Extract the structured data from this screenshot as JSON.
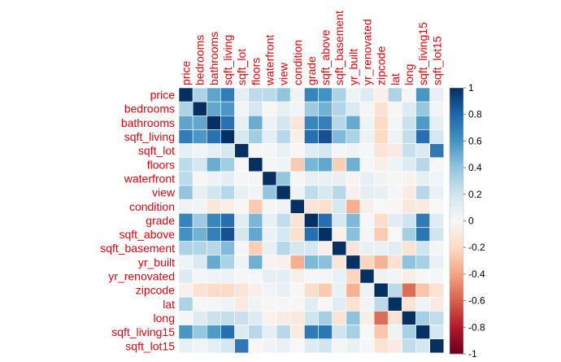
{
  "chart_data": {
    "type": "heatmap",
    "variables": [
      "price",
      "bedrooms",
      "bathrooms",
      "sqft_living",
      "sqft_lot",
      "floors",
      "waterfront",
      "view",
      "condition",
      "grade",
      "sqft_above",
      "sqft_basement",
      "yr_built",
      "yr_renovated",
      "zipcode",
      "lat",
      "long",
      "sqft_living15",
      "sqft_lot15"
    ],
    "matrix": [
      [
        1.0,
        0.31,
        0.53,
        0.7,
        0.09,
        0.26,
        0.27,
        0.4,
        0.04,
        0.67,
        0.61,
        0.32,
        0.05,
        0.13,
        -0.05,
        0.31,
        0.02,
        0.59,
        0.08
      ],
      [
        0.31,
        1.0,
        0.52,
        0.58,
        0.03,
        0.18,
        -0.01,
        0.08,
        0.03,
        0.36,
        0.48,
        0.3,
        0.15,
        0.02,
        -0.15,
        -0.01,
        0.13,
        0.39,
        0.03
      ],
      [
        0.53,
        0.52,
        1.0,
        0.75,
        0.09,
        0.5,
        0.06,
        0.19,
        -0.12,
        0.66,
        0.69,
        0.28,
        0.51,
        0.05,
        -0.2,
        0.02,
        0.22,
        0.57,
        0.09
      ],
      [
        0.7,
        0.58,
        0.75,
        1.0,
        0.17,
        0.35,
        0.1,
        0.28,
        -0.06,
        0.76,
        0.88,
        0.44,
        0.32,
        0.06,
        -0.2,
        0.05,
        0.24,
        0.76,
        0.18
      ],
      [
        0.09,
        0.03,
        0.09,
        0.17,
        1.0,
        -0.01,
        0.02,
        0.07,
        -0.01,
        0.11,
        0.18,
        0.02,
        0.05,
        0.01,
        -0.13,
        -0.09,
        0.23,
        0.14,
        0.72
      ],
      [
        0.26,
        0.18,
        0.5,
        0.35,
        -0.01,
        1.0,
        0.02,
        0.03,
        -0.26,
        0.46,
        0.52,
        -0.25,
        0.49,
        0.01,
        -0.06,
        0.05,
        0.13,
        0.28,
        -0.01
      ],
      [
        0.27,
        -0.01,
        0.06,
        0.1,
        0.02,
        0.02,
        1.0,
        0.4,
        0.02,
        0.08,
        0.07,
        0.08,
        -0.03,
        0.09,
        0.03,
        -0.01,
        -0.04,
        0.09,
        0.03
      ],
      [
        0.4,
        0.08,
        0.19,
        0.28,
        0.07,
        0.03,
        0.4,
        1.0,
        0.05,
        0.25,
        0.17,
        0.28,
        -0.05,
        0.1,
        0.08,
        0.01,
        -0.08,
        0.28,
        0.07
      ],
      [
        0.04,
        0.03,
        -0.12,
        -0.06,
        -0.01,
        -0.26,
        0.02,
        0.05,
        1.0,
        -0.14,
        -0.16,
        0.17,
        -0.36,
        -0.06,
        0.0,
        -0.01,
        -0.11,
        -0.09,
        -0.0
      ],
      [
        0.67,
        0.36,
        0.66,
        0.76,
        0.11,
        0.46,
        0.08,
        0.25,
        -0.14,
        1.0,
        0.76,
        0.17,
        0.45,
        0.01,
        -0.18,
        0.11,
        0.2,
        0.71,
        0.12
      ],
      [
        0.61,
        0.48,
        0.69,
        0.88,
        0.18,
        0.52,
        0.07,
        0.17,
        -0.16,
        0.76,
        1.0,
        -0.05,
        0.42,
        0.02,
        -0.26,
        -0.0,
        0.34,
        0.73,
        0.19
      ],
      [
        0.32,
        0.3,
        0.28,
        0.44,
        0.02,
        -0.25,
        0.08,
        0.28,
        0.17,
        0.17,
        -0.05,
        1.0,
        -0.13,
        0.07,
        0.07,
        0.11,
        -0.14,
        0.2,
        0.02
      ],
      [
        0.05,
        0.15,
        0.51,
        0.32,
        0.05,
        0.49,
        -0.03,
        -0.05,
        -0.36,
        0.45,
        0.42,
        -0.13,
        1.0,
        -0.22,
        -0.35,
        -0.15,
        0.41,
        0.33,
        0.07
      ],
      [
        0.13,
        0.02,
        0.05,
        0.06,
        0.01,
        0.01,
        0.09,
        0.1,
        -0.06,
        0.01,
        0.02,
        0.07,
        -0.22,
        1.0,
        0.06,
        0.03,
        -0.07,
        -0.0,
        0.01
      ],
      [
        -0.05,
        -0.15,
        -0.2,
        -0.2,
        -0.13,
        -0.06,
        0.03,
        0.08,
        0.0,
        -0.18,
        -0.26,
        0.07,
        -0.35,
        0.06,
        1.0,
        0.27,
        -0.56,
        -0.28,
        -0.15
      ],
      [
        0.31,
        -0.01,
        0.02,
        0.05,
        -0.09,
        0.05,
        -0.01,
        0.01,
        -0.01,
        0.11,
        -0.0,
        0.11,
        -0.15,
        0.03,
        0.27,
        1.0,
        -0.14,
        0.05,
        -0.09
      ],
      [
        0.02,
        0.13,
        0.22,
        0.24,
        0.23,
        0.13,
        -0.04,
        -0.08,
        -0.11,
        0.2,
        0.34,
        -0.14,
        0.41,
        -0.07,
        -0.56,
        -0.14,
        1.0,
        0.33,
        0.25
      ],
      [
        0.59,
        0.39,
        0.57,
        0.76,
        0.14,
        0.28,
        0.09,
        0.28,
        -0.09,
        0.71,
        0.73,
        0.2,
        0.33,
        -0.0,
        -0.28,
        0.05,
        0.33,
        1.0,
        0.18
      ],
      [
        0.08,
        0.03,
        0.09,
        0.18,
        0.72,
        -0.01,
        0.03,
        0.07,
        -0.0,
        0.12,
        0.19,
        0.02,
        0.07,
        0.01,
        -0.15,
        -0.09,
        0.25,
        0.18,
        1.0
      ]
    ],
    "title": "",
    "colorbar": {
      "range": [
        -1,
        1
      ],
      "ticks": [
        "-1",
        "-0.8",
        "-0.6",
        "-0.4",
        "-0.2",
        "0",
        "0.2",
        "0.4",
        "0.6",
        "0.8",
        "1"
      ],
      "low_color": "#67001f",
      "mid_color": "#f7f7f7",
      "high_color": "#053061"
    },
    "label_color": "#e8000b",
    "legend": "right"
  }
}
